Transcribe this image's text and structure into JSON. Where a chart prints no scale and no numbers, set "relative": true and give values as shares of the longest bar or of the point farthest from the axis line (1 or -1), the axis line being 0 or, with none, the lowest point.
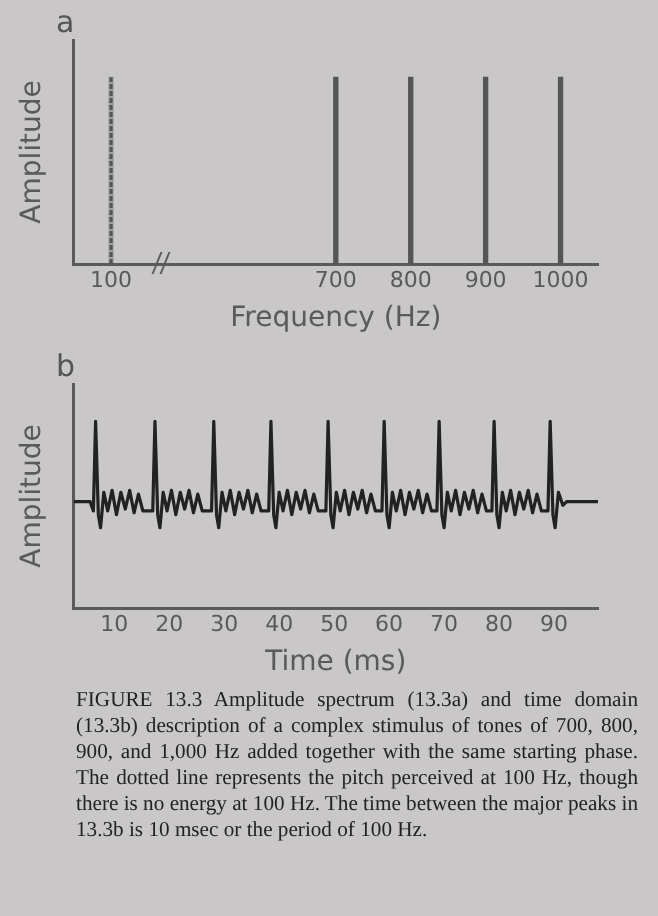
{
  "chart_data": [
    {
      "type": "bar",
      "title": "a",
      "xlabel": "Frequency (Hz)",
      "ylabel": "Amplitude",
      "relative": true,
      "categories": [
        "100",
        null,
        null,
        "700",
        "800",
        "900",
        "1000"
      ],
      "series": [
        {
          "color": "#555555",
          "values": [
            null,
            null,
            null,
            1,
            1,
            1,
            1
          ]
        },
        {
          "color": "#555555",
          "line_style": "dotted",
          "values": [
            1,
            null,
            null,
            null,
            null,
            null,
            null
          ]
        }
      ]
    },
    {
      "type": "line",
      "title": "b",
      "xlabel": "Time (ms)",
      "ylabel": "Amplitude",
      "relative": true,
      "xlim": [
        2.6,
        98
      ],
      "xticks": [
        10,
        20,
        30,
        40,
        50,
        60,
        70,
        80,
        90
      ],
      "annotations": [
        "FIGURE 13.3  Amplitude spectrum (13.3a) and time domain (13.3b) description of a complex stimulus of tones of 700, 800, 900, and 1,000 Hz added together with the same starting phase. The dotted line represents the pitch perceived at 100 Hz, though there is no energy at 100 Hz. The time between the major peaks in 13.3b is 10 msec or the period of 100 Hz."
      ],
      "series": [
        {
          "color": "#222222",
          "x": [
            2.6,
            5.6,
            6.2,
            6.6,
            7.1,
            7.5,
            8.1,
            8.8,
            9.6,
            10.4,
            11.2,
            12.0,
            12.8,
            13.6,
            14.4,
            15.2,
            17.0,
            17.4,
            17.9,
            18.3,
            18.9,
            19.6,
            20.4,
            21.2,
            22.0,
            22.8,
            23.6,
            24.4,
            25.2,
            26.0,
            27.7,
            28.1,
            28.6,
            29.0,
            29.6,
            30.3,
            31.1,
            31.9,
            32.7,
            33.5,
            34.3,
            35.1,
            35.9,
            36.7,
            38.1,
            38.5,
            39.0,
            39.4,
            40.0,
            40.7,
            41.5,
            42.3,
            43.1,
            43.9,
            44.7,
            45.5,
            46.3,
            47.1,
            48.5,
            48.9,
            49.4,
            49.8,
            50.4,
            51.1,
            51.9,
            52.7,
            53.5,
            54.3,
            55.1,
            55.9,
            56.7,
            57.5,
            58.7,
            59.1,
            59.6,
            60.0,
            60.6,
            61.3,
            62.1,
            62.9,
            63.7,
            64.5,
            65.3,
            66.1,
            66.9,
            67.7,
            68.7,
            69.1,
            69.6,
            70.0,
            70.6,
            71.3,
            72.1,
            72.9,
            73.7,
            74.5,
            75.3,
            76.1,
            76.9,
            77.7,
            78.7,
            79.1,
            79.6,
            80.0,
            80.6,
            81.3,
            82.1,
            82.9,
            83.7,
            84.5,
            85.3,
            86.1,
            86.9,
            87.7,
            88.9,
            89.3,
            89.8,
            90.2,
            90.8,
            91.6,
            92.3,
            98
          ],
          "values": [
            0.57,
            0.57,
            0.52,
            1,
            0.5,
            0.43,
            0.62,
            0.52,
            0.63,
            0.5,
            0.62,
            0.53,
            0.63,
            0.51,
            0.61,
            0.52,
            0.52,
            1,
            0.5,
            0.43,
            0.62,
            0.52,
            0.63,
            0.5,
            0.62,
            0.53,
            0.63,
            0.51,
            0.61,
            0.52,
            0.52,
            1,
            0.5,
            0.43,
            0.62,
            0.52,
            0.63,
            0.5,
            0.62,
            0.53,
            0.63,
            0.51,
            0.61,
            0.52,
            0.52,
            1,
            0.5,
            0.43,
            0.62,
            0.52,
            0.63,
            0.5,
            0.62,
            0.53,
            0.63,
            0.51,
            0.61,
            0.52,
            0.52,
            1,
            0.5,
            0.43,
            0.62,
            0.52,
            0.63,
            0.5,
            0.62,
            0.53,
            0.63,
            0.51,
            0.61,
            0.52,
            0.52,
            1,
            0.5,
            0.43,
            0.62,
            0.52,
            0.63,
            0.5,
            0.62,
            0.53,
            0.63,
            0.51,
            0.61,
            0.52,
            0.52,
            1,
            0.5,
            0.43,
            0.62,
            0.52,
            0.63,
            0.5,
            0.62,
            0.53,
            0.63,
            0.51,
            0.61,
            0.52,
            0.52,
            1,
            0.5,
            0.43,
            0.62,
            0.52,
            0.63,
            0.5,
            0.62,
            0.53,
            0.63,
            0.51,
            0.61,
            0.52,
            0.52,
            1,
            0.5,
            0.43,
            0.62,
            0.55,
            0.57,
            0.57
          ]
        }
      ]
    }
  ]
}
